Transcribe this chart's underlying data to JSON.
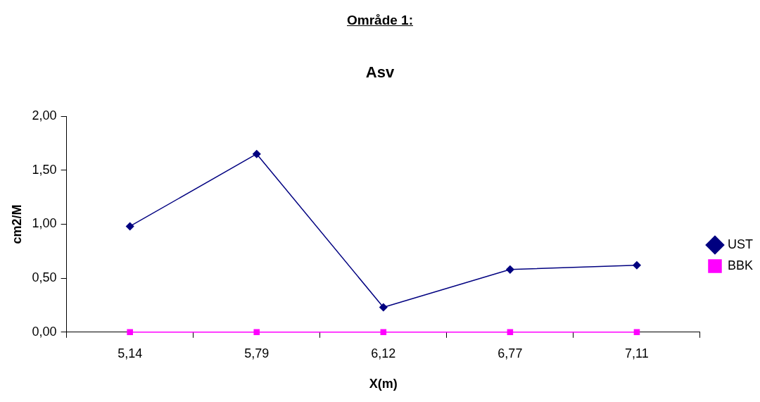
{
  "chart_data": {
    "type": "line",
    "title": "Område 1:",
    "subtitle": "Asv",
    "xlabel": "X(m)",
    "ylabel": "cm2/M",
    "categories": [
      "5,14",
      "5,79",
      "6,12",
      "6,77",
      "7,11"
    ],
    "series": [
      {
        "name": "UST",
        "color": "#000080",
        "marker": "diamond",
        "values": [
          0.98,
          1.65,
          0.23,
          0.58,
          0.62
        ]
      },
      {
        "name": "BBK",
        "color": "#ff00ff",
        "marker": "square",
        "values": [
          0,
          0,
          0,
          0,
          0
        ]
      }
    ],
    "ylim": [
      0,
      2
    ],
    "yticks": [
      {
        "value": 0,
        "label": "0,00"
      },
      {
        "value": 0.5,
        "label": "0,50"
      },
      {
        "value": 1,
        "label": "1,00"
      },
      {
        "value": 1.5,
        "label": "1,50"
      },
      {
        "value": 2,
        "label": "2,00"
      }
    ],
    "grid": false,
    "legend": "right",
    "line_style": "solid"
  }
}
